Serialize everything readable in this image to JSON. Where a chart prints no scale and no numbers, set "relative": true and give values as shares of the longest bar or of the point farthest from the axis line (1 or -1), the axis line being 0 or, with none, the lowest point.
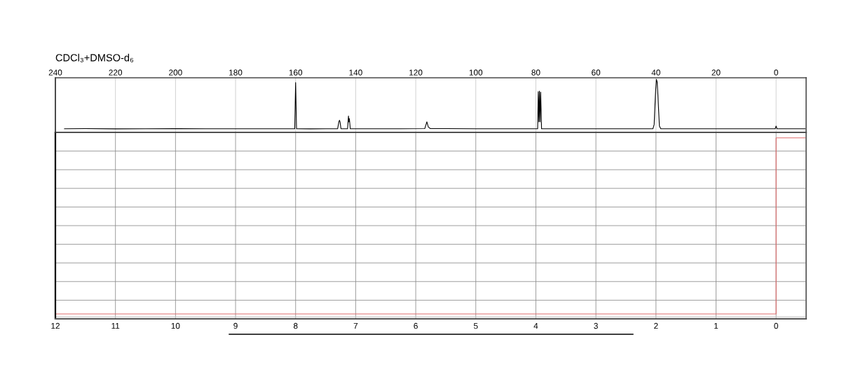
{
  "chart_data": [
    {
      "type": "line",
      "title": "CDCl₃+DMSO-d₆",
      "relative": true,
      "xlim": [
        240,
        -10
      ],
      "xticks": [
        240,
        220,
        200,
        180,
        160,
        140,
        120,
        100,
        80,
        60,
        40,
        20,
        0
      ],
      "grid": "x",
      "tick_labels": "x",
      "series": [
        {
          "color": "#000000",
          "x": [
            237,
            230,
            220,
            210,
            200,
            190,
            180,
            170,
            162,
            160.3,
            160.0,
            159.7,
            155,
            150,
            146.0,
            145.6,
            145.4,
            145.2,
            144.9,
            142.7,
            142.4,
            142.25,
            142.1,
            141.8,
            135,
            125,
            117,
            116.3,
            115.8,
            115.2,
            110,
            100,
            90,
            80,
            79.4,
            79.2,
            79.0,
            78.8,
            78.6,
            78.4,
            78.1,
            70,
            60,
            50,
            41,
            40.6,
            40.35,
            40.1,
            39.85,
            39.6,
            39.35,
            39.1,
            38.85,
            38.4,
            30,
            20,
            10,
            1,
            0.3,
            0,
            -0.3,
            -10
          ],
          "values": [
            0.07,
            0.072,
            0.068,
            0.07,
            0.071,
            0.069,
            0.07,
            0.07,
            0.069,
            0.07,
            0.94,
            0.07,
            0.068,
            0.07,
            0.07,
            0.2,
            0.23,
            0.2,
            0.07,
            0.07,
            0.31,
            0.2,
            0.26,
            0.07,
            0.069,
            0.07,
            0.072,
            0.2,
            0.1,
            0.075,
            0.072,
            0.07,
            0.069,
            0.07,
            0.07,
            0.77,
            0.2,
            0.78,
            0.2,
            0.76,
            0.07,
            0.07,
            0.07,
            0.07,
            0.07,
            0.15,
            0.5,
            0.8,
            1.0,
            0.95,
            0.7,
            0.4,
            0.12,
            0.07,
            0.07,
            0.07,
            0.07,
            0.07,
            0.07,
            0.12,
            0.07,
            0.07
          ]
        }
      ]
    },
    {
      "type": "line",
      "relative": true,
      "xlim": [
        12,
        -0.5
      ],
      "xticks": [
        12,
        11,
        10,
        9,
        8,
        7,
        6,
        5,
        4,
        3,
        2,
        1,
        0
      ],
      "grid": true,
      "tick_labels": "x",
      "series": [
        {
          "color": "#c8c8c8",
          "x": [
            12,
            -0.5
          ],
          "values": [
            0.01,
            0.01
          ]
        },
        {
          "color": "#e06c6c",
          "x": [
            12,
            0,
            0,
            -0.5
          ],
          "values": [
            0.027,
            0.027,
            1,
            1
          ]
        }
      ]
    }
  ]
}
